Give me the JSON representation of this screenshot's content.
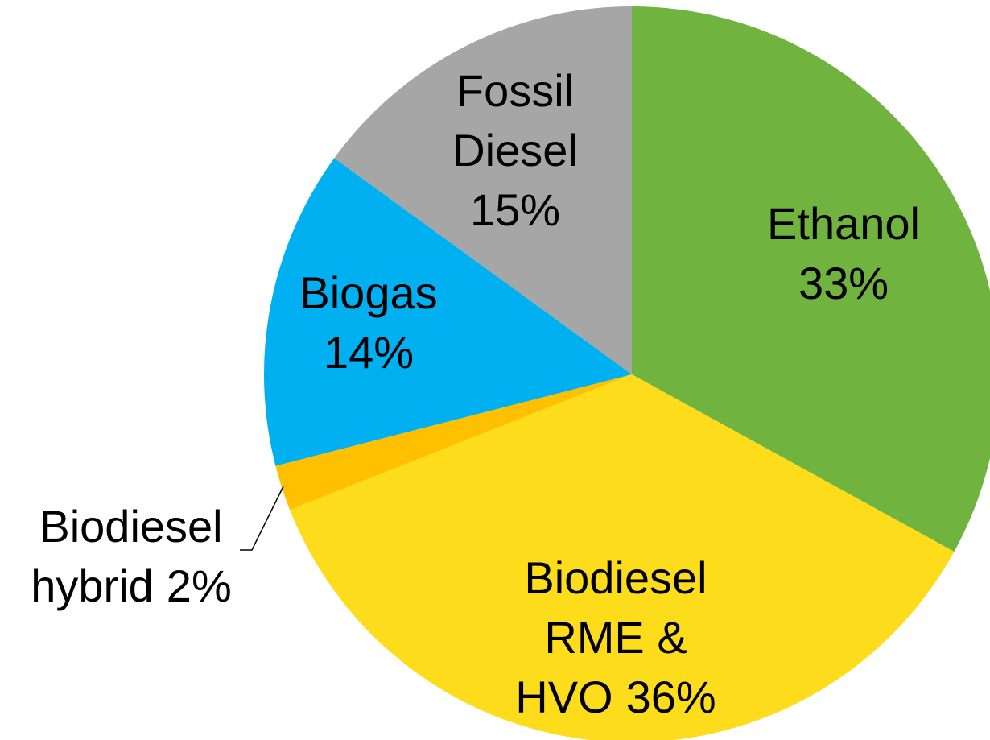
{
  "chart_data": {
    "type": "pie",
    "categories": [
      "Ethanol",
      "Biodiesel\nRME &\nHVO",
      "Biodiesel\nhybrid",
      "Biogas",
      "Fossil\nDiesel"
    ],
    "values": [
      33,
      36,
      2,
      14,
      15
    ],
    "value_labels": [
      "33%",
      "36%",
      "2%",
      "14%",
      "15%"
    ],
    "colors": [
      "#70b33f",
      "#fddc1c",
      "#ffc000",
      "#00b0f0",
      "#a6a6a6"
    ]
  }
}
